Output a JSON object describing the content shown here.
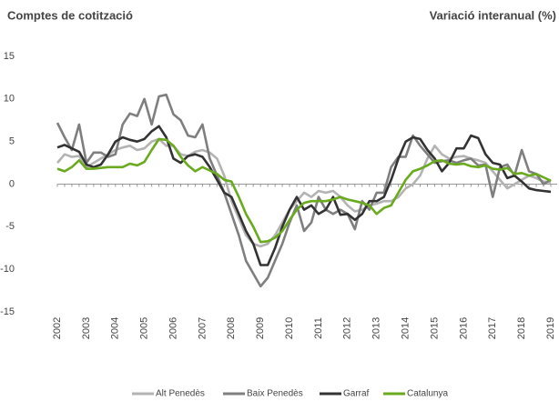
{
  "chart_data": {
    "type": "line",
    "title": "Comptes de cotització",
    "ylabel": "Variació interanual (%)",
    "categories": [
      "2002",
      null,
      null,
      null,
      "2003",
      null,
      null,
      null,
      "2004",
      null,
      null,
      null,
      "2005",
      null,
      null,
      null,
      "2006",
      null,
      null,
      null,
      "2007",
      null,
      null,
      null,
      "2008",
      null,
      null,
      null,
      "2009",
      null,
      null,
      null,
      "2010",
      null,
      null,
      null,
      "2011",
      null,
      null,
      null,
      "2012",
      null,
      null,
      null,
      "2013",
      null,
      null,
      null,
      "2014",
      null,
      null,
      null,
      "2015",
      null,
      null,
      null,
      "2016",
      null,
      null,
      null,
      "2017",
      null,
      null,
      null,
      "2018",
      null,
      null,
      null,
      "2019"
    ],
    "series": [
      {
        "name": "Alt Penedès",
        "color": "#b3b3b3",
        "values": [
          2.5,
          3.5,
          3.2,
          3.3,
          2.0,
          2.5,
          3.0,
          3.5,
          4.0,
          4.3,
          4.5,
          4.0,
          4.2,
          5.0,
          5.3,
          4.5,
          4.5,
          3.5,
          3.3,
          3.8,
          4.0,
          3.7,
          3.0,
          1.0,
          -2.0,
          -4.0,
          -6.0,
          -7.0,
          -7.3,
          -7.0,
          -6.0,
          -4.5,
          -3.0,
          -2.0,
          -1.0,
          -1.5,
          -0.8,
          -1.0,
          -0.8,
          -1.5,
          -2.5,
          -3.2,
          -3.0,
          -2.5,
          -2.3,
          -2.0,
          -2.0,
          -1.5,
          -0.5,
          0.0,
          1.0,
          3.0,
          4.5,
          3.5,
          3.0,
          3.2,
          3.3,
          3.0,
          2.8,
          2.5,
          1.5,
          0.5,
          -0.5,
          0.0,
          0.5,
          1.0,
          0.7,
          0.3,
          0.2
        ]
      },
      {
        "name": "Baix Penedès",
        "color": "#7f7f7f",
        "values": [
          7.2,
          5.5,
          4.0,
          7.0,
          2.5,
          3.7,
          3.7,
          3.2,
          3.5,
          7.0,
          8.3,
          8.0,
          10.0,
          7.0,
          10.3,
          10.5,
          8.2,
          7.5,
          5.7,
          5.5,
          7.0,
          3.0,
          1.0,
          -1.0,
          -3.5,
          -6.0,
          -9.0,
          -10.5,
          -12.0,
          -11.0,
          -9.0,
          -7.0,
          -4.5,
          -2.5,
          -5.5,
          -4.5,
          -1.5,
          -3.0,
          -3.5,
          -3.0,
          -3.5,
          -5.3,
          -2.0,
          -3.0,
          -1.0,
          -1.0,
          2.0,
          3.2,
          3.2,
          5.7,
          4.5,
          3.5,
          2.5,
          2.7,
          2.8,
          2.5,
          2.8,
          3.0,
          2.2,
          2.3,
          -1.5,
          2.0,
          2.3,
          1.0,
          4.0,
          1.5,
          1.2,
          0.0,
          0.5
        ]
      },
      {
        "name": "Garraf",
        "color": "#333333",
        "values": [
          4.3,
          4.6,
          4.2,
          3.8,
          2.3,
          2.0,
          2.3,
          3.5,
          5.0,
          5.5,
          5.2,
          5.0,
          5.3,
          6.2,
          6.8,
          5.5,
          3.0,
          2.5,
          3.3,
          3.5,
          3.2,
          2.0,
          0.5,
          -1.0,
          -1.5,
          -3.5,
          -5.5,
          -7.0,
          -9.5,
          -9.5,
          -7.5,
          -5.0,
          -3.0,
          -1.5,
          -3.0,
          -2.5,
          -3.5,
          -3.0,
          -1.5,
          -3.6,
          -3.5,
          -4.2,
          -3.5,
          -2.0,
          -2.0,
          -1.5,
          0.5,
          3.0,
          5.0,
          5.5,
          5.3,
          4.0,
          3.0,
          1.5,
          2.5,
          4.2,
          4.2,
          5.7,
          5.4,
          3.5,
          2.5,
          2.3,
          0.7,
          1.0,
          0.3,
          -0.5,
          -0.7,
          -0.8,
          -0.9
        ]
      },
      {
        "name": "Catalunya",
        "color": "#6aaa1e",
        "values": [
          1.8,
          1.5,
          2.0,
          2.8,
          1.8,
          1.8,
          1.9,
          2.0,
          2.0,
          2.0,
          2.4,
          2.2,
          2.6,
          4.0,
          5.3,
          5.2,
          4.5,
          3.2,
          2.2,
          1.5,
          2.0,
          1.6,
          1.2,
          0.5,
          0.3,
          -1.5,
          -3.5,
          -5.0,
          -6.8,
          -6.7,
          -6.3,
          -5.5,
          -4.2,
          -3.0,
          -2.2,
          -2.0,
          -2.0,
          -2.0,
          -1.8,
          -1.5,
          -1.8,
          -2.0,
          -2.2,
          -2.5,
          -3.5,
          -2.8,
          -2.5,
          -1.0,
          0.5,
          1.5,
          1.8,
          2.2,
          2.7,
          2.8,
          2.4,
          2.3,
          2.4,
          2.1,
          2.0,
          2.2,
          1.8,
          1.7,
          1.9,
          1.2,
          1.3,
          1.0,
          1.2,
          0.8,
          0.4
        ]
      }
    ],
    "ylim": [
      -15,
      15
    ],
    "yticks": [
      -15,
      -10,
      -5,
      0,
      5,
      10,
      15
    ],
    "legend": "bottom"
  }
}
